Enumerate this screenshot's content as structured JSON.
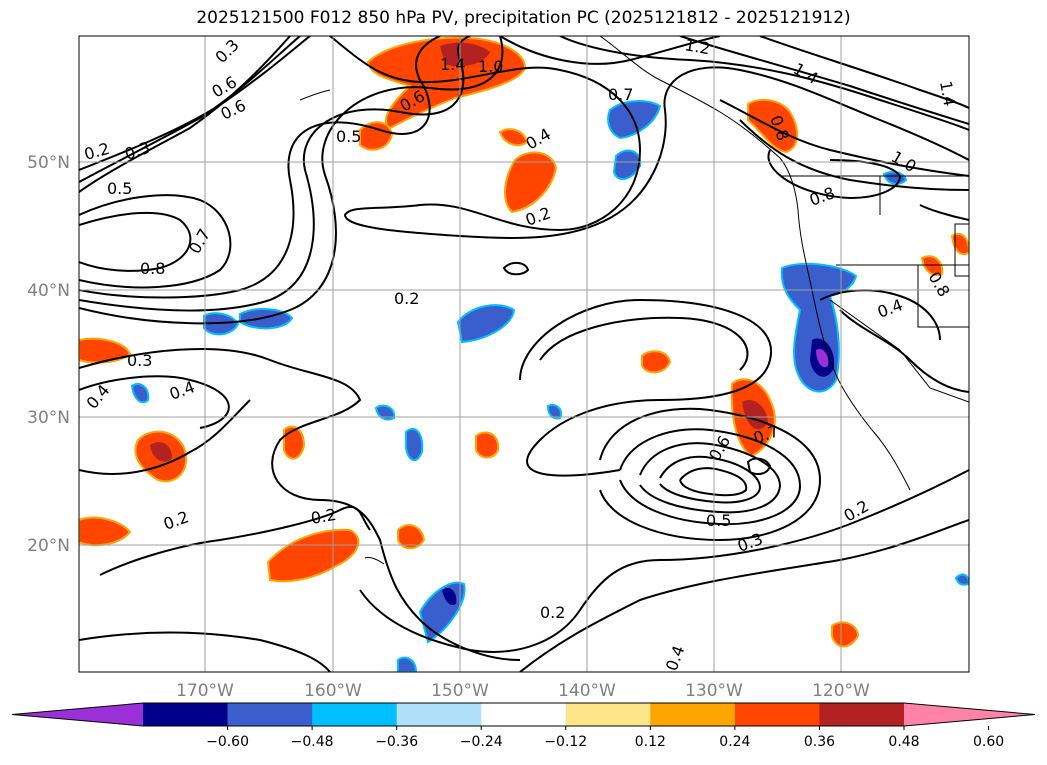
{
  "title": "2025121500 F012 850 hPa PV, precipitation PC (2025121812 - 2025121912)",
  "lat_labels": [
    "50°N",
    "40°N",
    "30°N",
    "20°N"
  ],
  "lon_labels": [
    "170°W",
    "160°W",
    "150°W",
    "140°W",
    "130°W",
    "120°W"
  ],
  "colorbar": {
    "colors": [
      "#9b30d9",
      "#00008b",
      "#3a5fcd",
      "#00bfff",
      "#afe0fa",
      "#ffffff",
      "#fde68a",
      "#ffa500",
      "#ff4500",
      "#b22222",
      "#ff82ab"
    ],
    "tick_labels": [
      "−0.60",
      "−0.48",
      "−0.36",
      "−0.24",
      "−0.12",
      "0.12",
      "0.24",
      "0.36",
      "0.48",
      "0.60"
    ]
  },
  "contour_labels": [
    "0.3",
    "0.6",
    "0.6",
    "0.2",
    "0.3",
    "0.5",
    "0.7",
    "0.8",
    "1.4",
    "1.0",
    "0.6",
    "0.5",
    "0.7",
    "0.4",
    "0.2",
    "1.2",
    "1.4",
    "1.4",
    "0.8",
    "1.0",
    "0.8",
    "0.2",
    "0.3",
    "0.4",
    "0.4",
    "0.4",
    "0.6",
    "0.7",
    "0.5",
    "0.3",
    "0.2",
    "0.2",
    "0.2",
    "0.2",
    "0.4",
    "0.8"
  ]
}
